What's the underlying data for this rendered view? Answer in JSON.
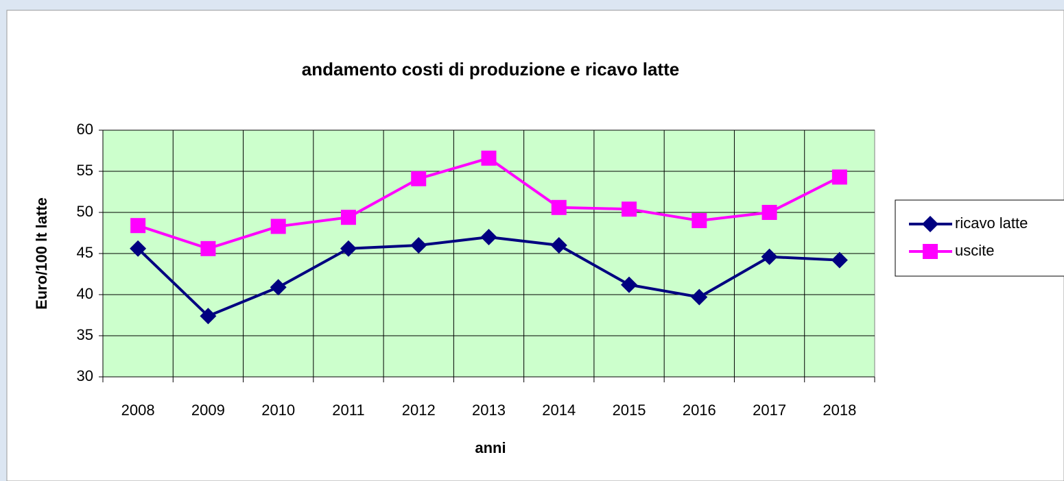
{
  "chart_data": {
    "type": "line",
    "title": "andamento costi di produzione e ricavo latte",
    "x_label": "anni",
    "y_label": "Euro/100 lt latte",
    "categories": [
      "2008",
      "2009",
      "2010",
      "2011",
      "2012",
      "2013",
      "2014",
      "2015",
      "2016",
      "2017",
      "2018"
    ],
    "series": [
      {
        "name": "ricavo latte",
        "color": "#000080",
        "marker": "diamond",
        "values": [
          45.6,
          37.4,
          40.9,
          45.6,
          46.0,
          47.0,
          46.0,
          41.2,
          39.7,
          44.6,
          44.2
        ]
      },
      {
        "name": "uscite",
        "color": "#ff00ff",
        "marker": "square",
        "values": [
          48.4,
          45.6,
          48.3,
          49.4,
          54.1,
          56.6,
          50.6,
          50.4,
          49.0,
          50.0,
          54.3
        ]
      }
    ],
    "ylim": [
      30,
      60
    ],
    "yticks": [
      30,
      35,
      40,
      45,
      50,
      55,
      60
    ],
    "grid": true,
    "plot_background": "#ccffcc",
    "legend": "right"
  }
}
